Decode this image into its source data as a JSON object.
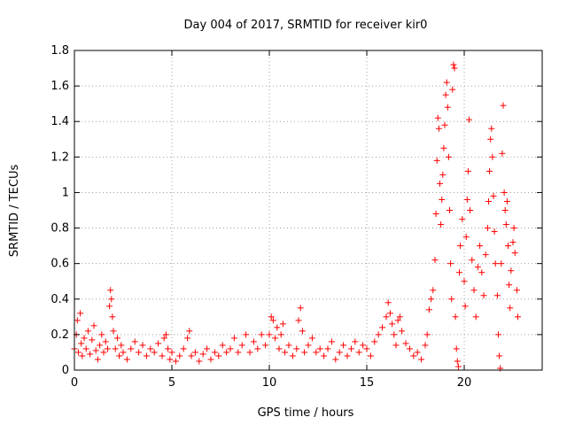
{
  "chart_data": {
    "type": "scatter",
    "title": "Day 004 of 2017, SRMTID for receiver kir0",
    "xlabel": "GPS time / hours",
    "ylabel": "SRMTID / TECUs",
    "xlim": [
      0,
      24
    ],
    "ylim": [
      0,
      1.8
    ],
    "xticks": [
      0,
      5,
      10,
      15,
      20
    ],
    "yticks": [
      0,
      0.2,
      0.4,
      0.6,
      0.8,
      1,
      1.2,
      1.4,
      1.6,
      1.8
    ],
    "grid": true,
    "marker": "+",
    "color": "#ff0000",
    "series": [
      {
        "name": "kir0",
        "points": [
          [
            0.0,
            0.12
          ],
          [
            0.1,
            0.2
          ],
          [
            0.15,
            0.28
          ],
          [
            0.2,
            0.1
          ],
          [
            0.3,
            0.32
          ],
          [
            0.35,
            0.15
          ],
          [
            0.4,
            0.08
          ],
          [
            0.5,
            0.18
          ],
          [
            0.6,
            0.12
          ],
          [
            0.7,
            0.22
          ],
          [
            0.8,
            0.09
          ],
          [
            0.9,
            0.17
          ],
          [
            1.0,
            0.25
          ],
          [
            1.1,
            0.11
          ],
          [
            1.2,
            0.06
          ],
          [
            1.3,
            0.14
          ],
          [
            1.4,
            0.2
          ],
          [
            1.5,
            0.1
          ],
          [
            1.6,
            0.16
          ],
          [
            1.7,
            0.12
          ],
          [
            1.8,
            0.36
          ],
          [
            1.85,
            0.45
          ],
          [
            1.9,
            0.4
          ],
          [
            1.95,
            0.3
          ],
          [
            2.0,
            0.22
          ],
          [
            2.1,
            0.12
          ],
          [
            2.2,
            0.18
          ],
          [
            2.3,
            0.08
          ],
          [
            2.4,
            0.14
          ],
          [
            2.5,
            0.1
          ],
          [
            2.7,
            0.06
          ],
          [
            2.9,
            0.12
          ],
          [
            3.1,
            0.16
          ],
          [
            3.3,
            0.1
          ],
          [
            3.5,
            0.14
          ],
          [
            3.7,
            0.08
          ],
          [
            3.9,
            0.12
          ],
          [
            4.1,
            0.1
          ],
          [
            4.3,
            0.15
          ],
          [
            4.5,
            0.08
          ],
          [
            4.6,
            0.18
          ],
          [
            4.7,
            0.2
          ],
          [
            4.8,
            0.12
          ],
          [
            4.9,
            0.06
          ],
          [
            5.0,
            0.1
          ],
          [
            5.2,
            0.05
          ],
          [
            5.4,
            0.08
          ],
          [
            5.6,
            0.12
          ],
          [
            5.8,
            0.18
          ],
          [
            5.9,
            0.22
          ],
          [
            6.0,
            0.08
          ],
          [
            6.2,
            0.1
          ],
          [
            6.4,
            0.05
          ],
          [
            6.6,
            0.09
          ],
          [
            6.8,
            0.12
          ],
          [
            7.0,
            0.06
          ],
          [
            7.2,
            0.1
          ],
          [
            7.4,
            0.08
          ],
          [
            7.6,
            0.14
          ],
          [
            7.8,
            0.1
          ],
          [
            8.0,
            0.12
          ],
          [
            8.2,
            0.18
          ],
          [
            8.4,
            0.1
          ],
          [
            8.6,
            0.14
          ],
          [
            8.8,
            0.2
          ],
          [
            9.0,
            0.1
          ],
          [
            9.2,
            0.16
          ],
          [
            9.4,
            0.12
          ],
          [
            9.6,
            0.2
          ],
          [
            9.8,
            0.14
          ],
          [
            10.0,
            0.2
          ],
          [
            10.1,
            0.3
          ],
          [
            10.2,
            0.28
          ],
          [
            10.3,
            0.18
          ],
          [
            10.4,
            0.24
          ],
          [
            10.5,
            0.12
          ],
          [
            10.6,
            0.2
          ],
          [
            10.7,
            0.26
          ],
          [
            10.8,
            0.1
          ],
          [
            11.0,
            0.14
          ],
          [
            11.2,
            0.08
          ],
          [
            11.4,
            0.12
          ],
          [
            11.5,
            0.28
          ],
          [
            11.6,
            0.35
          ],
          [
            11.7,
            0.22
          ],
          [
            11.8,
            0.1
          ],
          [
            12.0,
            0.14
          ],
          [
            12.2,
            0.18
          ],
          [
            12.4,
            0.1
          ],
          [
            12.6,
            0.12
          ],
          [
            12.8,
            0.08
          ],
          [
            13.0,
            0.12
          ],
          [
            13.2,
            0.16
          ],
          [
            13.4,
            0.06
          ],
          [
            13.6,
            0.1
          ],
          [
            13.8,
            0.14
          ],
          [
            14.0,
            0.08
          ],
          [
            14.2,
            0.12
          ],
          [
            14.4,
            0.16
          ],
          [
            14.6,
            0.1
          ],
          [
            14.8,
            0.14
          ],
          [
            15.0,
            0.12
          ],
          [
            15.2,
            0.08
          ],
          [
            15.4,
            0.16
          ],
          [
            15.6,
            0.2
          ],
          [
            15.8,
            0.24
          ],
          [
            16.0,
            0.3
          ],
          [
            16.1,
            0.38
          ],
          [
            16.2,
            0.32
          ],
          [
            16.3,
            0.26
          ],
          [
            16.4,
            0.2
          ],
          [
            16.5,
            0.14
          ],
          [
            16.6,
            0.28
          ],
          [
            16.7,
            0.3
          ],
          [
            16.8,
            0.22
          ],
          [
            17.0,
            0.15
          ],
          [
            17.2,
            0.12
          ],
          [
            17.4,
            0.08
          ],
          [
            17.6,
            0.1
          ],
          [
            17.8,
            0.06
          ],
          [
            18.0,
            0.14
          ],
          [
            18.1,
            0.2
          ],
          [
            18.2,
            0.34
          ],
          [
            18.3,
            0.4
          ],
          [
            18.4,
            0.45
          ],
          [
            18.5,
            0.62
          ],
          [
            18.55,
            0.88
          ],
          [
            18.6,
            1.18
          ],
          [
            18.65,
            1.42
          ],
          [
            18.7,
            1.36
          ],
          [
            18.75,
            1.05
          ],
          [
            18.8,
            0.82
          ],
          [
            18.85,
            0.96
          ],
          [
            18.9,
            1.1
          ],
          [
            18.95,
            1.25
          ],
          [
            19.0,
            1.38
          ],
          [
            19.05,
            1.55
          ],
          [
            19.1,
            1.62
          ],
          [
            19.15,
            1.48
          ],
          [
            19.2,
            1.2
          ],
          [
            19.25,
            0.9
          ],
          [
            19.3,
            0.6
          ],
          [
            19.35,
            0.4
          ],
          [
            19.4,
            1.58
          ],
          [
            19.45,
            1.72
          ],
          [
            19.5,
            1.7
          ],
          [
            19.55,
            0.3
          ],
          [
            19.6,
            0.12
          ],
          [
            19.65,
            0.05
          ],
          [
            19.7,
            0.02
          ],
          [
            19.75,
            0.55
          ],
          [
            19.8,
            0.7
          ],
          [
            19.9,
            0.85
          ],
          [
            20.0,
            0.5
          ],
          [
            20.05,
            0.36
          ],
          [
            20.1,
            0.75
          ],
          [
            20.15,
            0.96
          ],
          [
            20.2,
            1.12
          ],
          [
            20.25,
            1.41
          ],
          [
            20.3,
            0.9
          ],
          [
            20.4,
            0.62
          ],
          [
            20.5,
            0.45
          ],
          [
            20.6,
            0.3
          ],
          [
            20.7,
            0.58
          ],
          [
            20.8,
            0.7
          ],
          [
            20.9,
            0.55
          ],
          [
            21.0,
            0.42
          ],
          [
            21.1,
            0.65
          ],
          [
            21.2,
            0.8
          ],
          [
            21.25,
            0.95
          ],
          [
            21.3,
            1.12
          ],
          [
            21.35,
            1.3
          ],
          [
            21.4,
            1.36
          ],
          [
            21.45,
            1.2
          ],
          [
            21.5,
            0.98
          ],
          [
            21.55,
            0.78
          ],
          [
            21.6,
            0.6
          ],
          [
            21.7,
            0.42
          ],
          [
            21.75,
            0.2
          ],
          [
            21.8,
            0.08
          ],
          [
            21.85,
            0.01
          ],
          [
            21.9,
            0.6
          ],
          [
            21.95,
            1.22
          ],
          [
            22.0,
            1.49
          ],
          [
            22.05,
            1.0
          ],
          [
            22.1,
            0.9
          ],
          [
            22.15,
            0.82
          ],
          [
            22.2,
            0.95
          ],
          [
            22.25,
            0.7
          ],
          [
            22.3,
            0.48
          ],
          [
            22.35,
            0.35
          ],
          [
            22.4,
            0.56
          ],
          [
            22.5,
            0.72
          ],
          [
            22.55,
            0.8
          ],
          [
            22.6,
            0.66
          ],
          [
            22.7,
            0.45
          ],
          [
            22.75,
            0.3
          ]
        ]
      }
    ]
  }
}
